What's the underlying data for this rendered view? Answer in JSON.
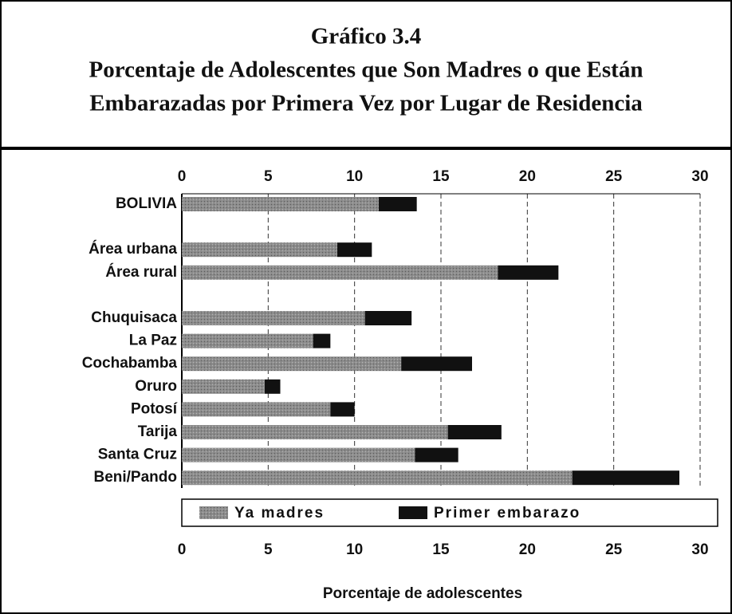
{
  "chart_data": {
    "type": "stacked_barh",
    "title_lines": [
      "Gráfico 3.4",
      "Porcentaje de Adolescentes que Son Madres o que Están",
      "Embarazadas por Primera Vez por Lugar de Residencia"
    ],
    "xlabel": "Porcentaje de adolescentes",
    "categories": [
      "BOLIVIA",
      null,
      "Área urbana",
      "Área rural",
      null,
      "Chuquisaca",
      "La Paz",
      "Cochabamba",
      "Oruro",
      "Potosí",
      "Tarija",
      "Santa Cruz",
      "Beni/Pando"
    ],
    "series": [
      {
        "name": "Ya madres",
        "color": "#8c8c8c",
        "values": [
          11.4,
          null,
          9.0,
          18.3,
          null,
          10.6,
          7.6,
          12.7,
          4.8,
          8.6,
          15.4,
          13.5,
          22.6
        ]
      },
      {
        "name": "Primer embarazo",
        "color": "#111111",
        "values": [
          2.2,
          null,
          2.0,
          3.5,
          null,
          2.7,
          1.0,
          4.1,
          0.9,
          1.4,
          3.1,
          2.5,
          6.2
        ]
      }
    ],
    "xlim": [
      0,
      30
    ],
    "xticks": [
      0,
      5,
      10,
      15,
      20,
      25,
      30
    ],
    "grid": true
  }
}
